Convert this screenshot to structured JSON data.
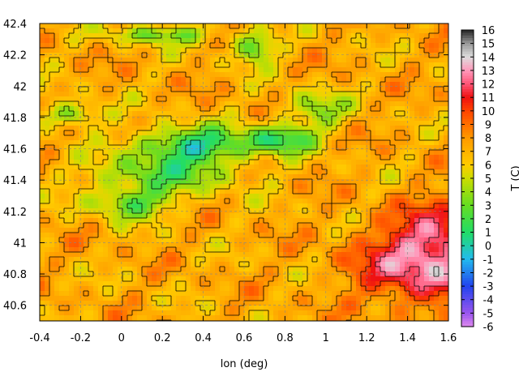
{
  "chart_data": {
    "type": "heatmap",
    "title": "",
    "xlabel": "lon (deg)",
    "ylabel": "",
    "xlim": [
      -0.4,
      1.6
    ],
    "ylim": [
      40.5,
      42.4
    ],
    "grid": true,
    "x_ticks": [
      "-0.4",
      "-0.2",
      "0",
      "0.2",
      "0.4",
      "0.6",
      "0.8",
      "1",
      "1.2",
      "1.4",
      "1.6"
    ],
    "x_tick_values": [
      -0.4,
      -0.2,
      0,
      0.2,
      0.4,
      0.6,
      0.8,
      1.0,
      1.2,
      1.4,
      1.6
    ],
    "y_ticks": [
      "40.6",
      "40.8",
      "41",
      "41.2",
      "41.4",
      "41.6",
      "41.8",
      "42",
      "42.2",
      "42.4"
    ],
    "y_tick_values": [
      40.6,
      40.8,
      41.0,
      41.2,
      41.4,
      41.6,
      41.8,
      42.0,
      42.2,
      42.4
    ],
    "colorbar": {
      "label": "T (C)",
      "range": [
        -6,
        16
      ],
      "tick_labels": [
        "16",
        "15",
        "14",
        "13",
        "12",
        "11",
        "10",
        "9",
        "8",
        "7",
        "6",
        "5",
        "4",
        "3",
        "2",
        "1",
        "0",
        "-1",
        "-2",
        "-3",
        "-4",
        "-5",
        "-6"
      ],
      "tick_values": [
        16,
        15,
        14,
        13,
        12,
        11,
        10,
        9,
        8,
        7,
        6,
        5,
        4,
        3,
        2,
        1,
        0,
        -1,
        -2,
        -3,
        -4,
        -5,
        -6
      ],
      "palette": [
        [
          -6,
          "#dd88ee"
        ],
        [
          -5,
          "#9955ee"
        ],
        [
          -3,
          "#2244ee"
        ],
        [
          -1,
          "#22bbee"
        ],
        [
          1,
          "#22dd66"
        ],
        [
          3,
          "#66dd22"
        ],
        [
          5,
          "#ccdd00"
        ],
        [
          6,
          "#ffcc00"
        ],
        [
          8,
          "#ff9900"
        ],
        [
          10,
          "#ff4400"
        ],
        [
          11,
          "#ee1111"
        ],
        [
          12,
          "#ff5577"
        ],
        [
          13,
          "#ff99bb"
        ],
        [
          14,
          "#dddddd"
        ],
        [
          15,
          "#999999"
        ],
        [
          16,
          "#222222"
        ]
      ]
    },
    "field_features": [
      {
        "kind": "cold",
        "lon": 0.35,
        "lat": 41.62,
        "t_delta": -6.5,
        "s_lon": 0.28,
        "s_lat": 0.12
      },
      {
        "kind": "cold",
        "lon": 0.78,
        "lat": 41.66,
        "t_delta": -5.5,
        "s_lon": 0.16,
        "s_lat": 0.09
      },
      {
        "kind": "cold",
        "lon": 0.05,
        "lat": 41.25,
        "t_delta": -4.5,
        "s_lon": 0.2,
        "s_lat": 0.1
      },
      {
        "kind": "cold",
        "lon": 0.65,
        "lat": 42.25,
        "t_delta": -5,
        "s_lon": 0.1,
        "s_lat": 0.1
      },
      {
        "kind": "cold",
        "lon": 0.2,
        "lat": 41.43,
        "t_delta": -4,
        "s_lon": 0.35,
        "s_lat": 0.12
      },
      {
        "kind": "cold",
        "lon": -0.25,
        "lat": 41.82,
        "t_delta": -4,
        "s_lon": 0.15,
        "s_lat": 0.08
      },
      {
        "kind": "cold",
        "lon": 0.2,
        "lat": 42.33,
        "t_delta": -4,
        "s_lon": 0.25,
        "s_lat": 0.06
      },
      {
        "kind": "cold",
        "lon": 0.95,
        "lat": 41.85,
        "t_delta": -3.5,
        "s_lon": 0.15,
        "s_lat": 0.12
      },
      {
        "kind": "warm",
        "lon": 1.45,
        "lat": 40.85,
        "t_delta": 5,
        "s_lon": 0.3,
        "s_lat": 0.25
      },
      {
        "kind": "warm",
        "lon": 1.55,
        "lat": 41.05,
        "t_delta": 3,
        "s_lon": 0.2,
        "s_lat": 0.25
      }
    ]
  }
}
